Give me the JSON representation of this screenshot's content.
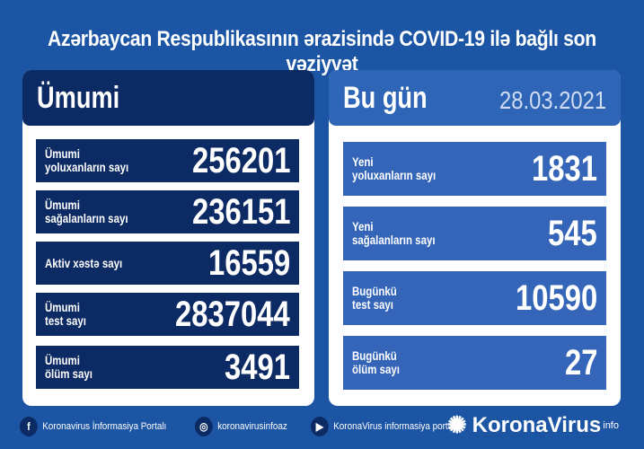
{
  "title": "Azərbaycan Respublikasının ərazisində COVID-19 ilə bağlı son vəziyyət",
  "left": {
    "heading": "Ümumi",
    "rows": [
      {
        "label": "Ümumi\nyoluxanların sayı",
        "value": "256201"
      },
      {
        "label": "Ümumi\nsağalanların sayı",
        "value": "236151"
      },
      {
        "label": "Aktiv xəstə sayı",
        "value": "16559"
      },
      {
        "label": "Ümumi\ntest sayı",
        "value": "2837044"
      },
      {
        "label": "Ümumi\nölüm sayı",
        "value": "3491"
      }
    ]
  },
  "right": {
    "heading": "Bu gün",
    "date": "28.03.2021",
    "rows": [
      {
        "label": "Yeni\nyoluxanların sayı",
        "value": "1831"
      },
      {
        "label": "Yeni\nsağalanların sayı",
        "value": "545"
      },
      {
        "label": "Bugünkü\ntest sayı",
        "value": "10590"
      },
      {
        "label": "Bugünkü\nölüm sayı",
        "value": "27"
      }
    ]
  },
  "footer": {
    "facebook": "Koronavirus İnformasiya Portalı",
    "instagram": "koronavirusinfoaz",
    "youtube": "KoronaVirus informasiya portalı",
    "logo": "KoronaVirus",
    "logo_sup": "info"
  },
  "colors": {
    "background": "#1d55a5",
    "navy": "#0c2a63",
    "row_blue": "#3465b8"
  }
}
